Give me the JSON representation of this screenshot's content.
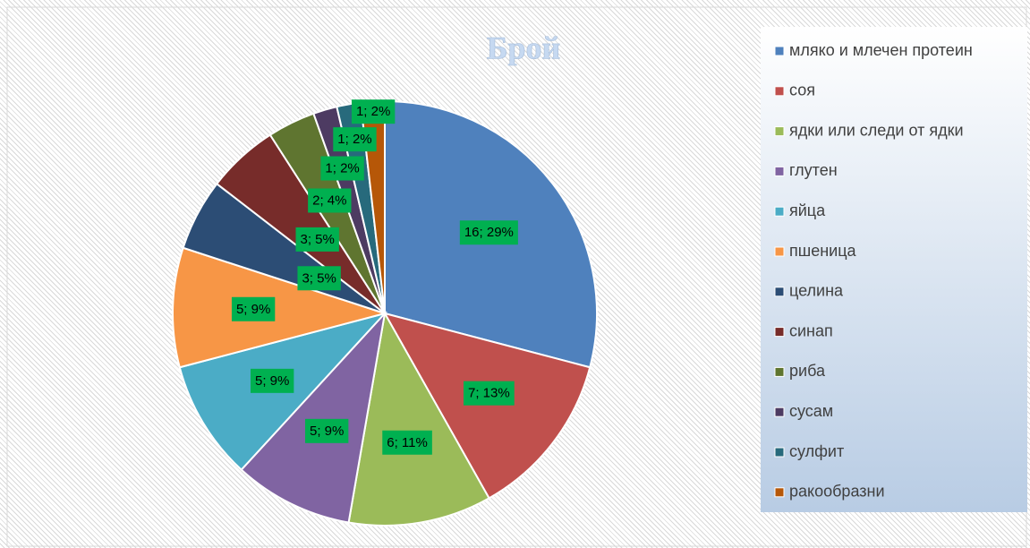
{
  "chart_data": {
    "type": "pie",
    "title": "Брой",
    "categories": [
      "мляко и млечен протеин",
      "соя",
      "ядки или следи от ядки",
      "глутен",
      "яйца",
      "пшеница",
      "целина",
      "синап",
      "риба",
      "сусам",
      "сулфит",
      "ракообразни"
    ],
    "values": [
      16,
      7,
      6,
      5,
      5,
      5,
      3,
      3,
      2,
      1,
      1,
      1
    ],
    "value_labels": [
      "16; 29%",
      "7; 13%",
      "6; 11%",
      "5; 9%",
      "5; 9%",
      "5; 9%",
      "3; 5%",
      "3; 5%",
      "2; 4%",
      "1; 2%",
      "1; 2%",
      "1; 2%"
    ],
    "colors": [
      "#4f81bd",
      "#c0504d",
      "#9bbb59",
      "#8064a2",
      "#4bacc6",
      "#f79646",
      "#2c4d75",
      "#772c2a",
      "#5f7530",
      "#4d3b62",
      "#276a7c",
      "#b65708"
    ],
    "legend": "right"
  }
}
